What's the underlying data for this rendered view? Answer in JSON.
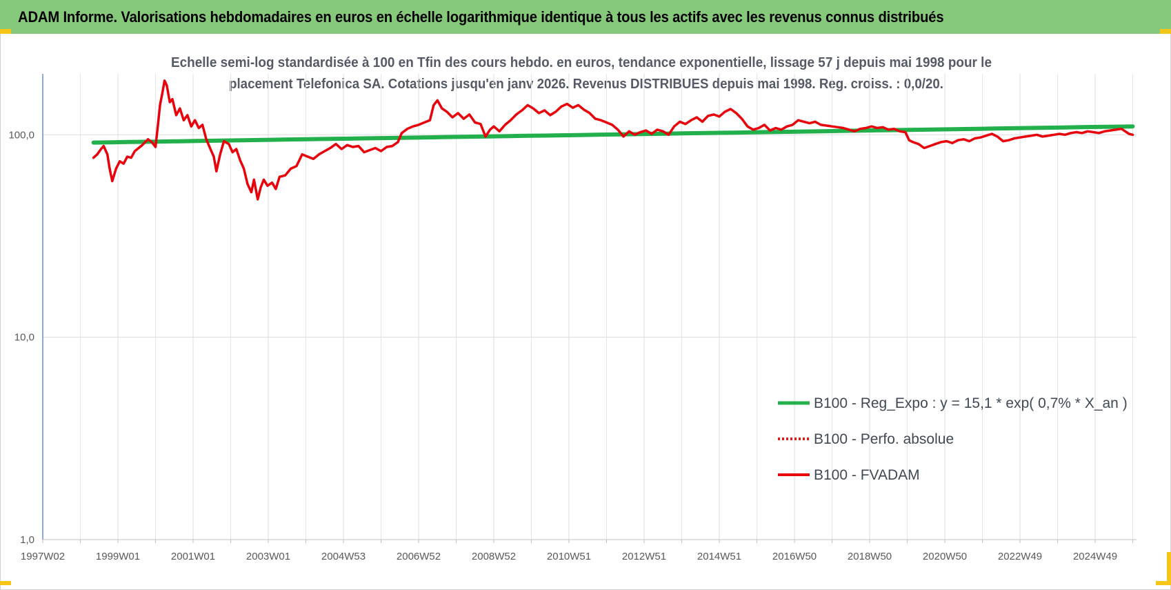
{
  "banner": {
    "title": "ADAM Informe. Valorisations hebdomadaires en euros en échelle logarithmique identique à tous les actifs avec les revenus connus distribués"
  },
  "colors": {
    "banner_bg": "#86c97a",
    "accent_corners": "#f5c518",
    "regression_line": "#21b04b",
    "perf_line": "#e31a1c",
    "fvadam_line": "#e8000b"
  },
  "chart_data": {
    "type": "line",
    "title_lines": [
      "Echelle semi-log standardisée à 100 en Tfin des cours hebdo. en euros, tendance exponentielle, lissage 57 j depuis mai 1998 pour le",
      "placement Telefonica SA.  Cotations jusqu'en janv 2026. Revenus DISTRIBUES depuis mai 1998.  Reg. croiss. : 0,0/20."
    ],
    "y_scale": "log",
    "ylim": [
      1,
      200
    ],
    "y_ticks": [
      {
        "value": 1,
        "label": "1,0"
      },
      {
        "value": 10,
        "label": "10,0"
      },
      {
        "value": 100,
        "label": "100,0"
      }
    ],
    "x_range_years": [
      1997.0,
      2026.1
    ],
    "x_ticks": [
      {
        "year": 1997.0,
        "label": "1997W02"
      },
      {
        "year": 1999.0,
        "label": "1999W01"
      },
      {
        "year": 2001.0,
        "label": "2001W01"
      },
      {
        "year": 2003.0,
        "label": "2003W01"
      },
      {
        "year": 2005.0,
        "label": "2004W53"
      },
      {
        "year": 2007.0,
        "label": "2006W52"
      },
      {
        "year": 2009.0,
        "label": "2008W52"
      },
      {
        "year": 2011.0,
        "label": "2010W51"
      },
      {
        "year": 2013.0,
        "label": "2012W51"
      },
      {
        "year": 2015.0,
        "label": "2014W51"
      },
      {
        "year": 2017.0,
        "label": "2016W50"
      },
      {
        "year": 2019.0,
        "label": "2018W50"
      },
      {
        "year": 2021.0,
        "label": "2020W50"
      },
      {
        "year": 2023.0,
        "label": "2022W49"
      },
      {
        "year": 2025.0,
        "label": "2024W49"
      }
    ],
    "grid": "vertical",
    "legend_position": "bottom-right",
    "series": [
      {
        "name": "B100 - Reg_Expo : y = 15,1 * exp( 0,7% *  X_an )",
        "style": "solid-green",
        "points": [
          [
            1998.35,
            91.5
          ],
          [
            2026.0,
            110.0
          ]
        ]
      },
      {
        "name": "B100 - Perfo. absolue",
        "style": "dotted-red",
        "points": []
      },
      {
        "name": "B100 - FVADAM",
        "style": "solid-red",
        "points": [
          [
            1998.35,
            77
          ],
          [
            1998.45,
            80
          ],
          [
            1998.55,
            85
          ],
          [
            1998.62,
            88
          ],
          [
            1998.72,
            80
          ],
          [
            1998.78,
            68
          ],
          [
            1998.85,
            59
          ],
          [
            1998.95,
            68
          ],
          [
            1999.05,
            74
          ],
          [
            1999.15,
            72
          ],
          [
            1999.25,
            78
          ],
          [
            1999.35,
            77
          ],
          [
            1999.45,
            83
          ],
          [
            1999.55,
            86
          ],
          [
            1999.65,
            89
          ],
          [
            1999.8,
            95
          ],
          [
            1999.9,
            92
          ],
          [
            2000.0,
            87
          ],
          [
            2000.06,
            110
          ],
          [
            2000.12,
            140
          ],
          [
            2000.18,
            160
          ],
          [
            2000.24,
            185
          ],
          [
            2000.3,
            175
          ],
          [
            2000.38,
            145
          ],
          [
            2000.45,
            150
          ],
          [
            2000.55,
            125
          ],
          [
            2000.65,
            135
          ],
          [
            2000.75,
            118
          ],
          [
            2000.85,
            125
          ],
          [
            2000.95,
            110
          ],
          [
            2001.05,
            118
          ],
          [
            2001.15,
            108
          ],
          [
            2001.25,
            112
          ],
          [
            2001.35,
            95
          ],
          [
            2001.45,
            86
          ],
          [
            2001.55,
            78
          ],
          [
            2001.62,
            66
          ],
          [
            2001.72,
            80
          ],
          [
            2001.82,
            93
          ],
          [
            2001.95,
            90
          ],
          [
            2002.05,
            82
          ],
          [
            2002.15,
            85
          ],
          [
            2002.25,
            75
          ],
          [
            2002.35,
            68
          ],
          [
            2002.45,
            57
          ],
          [
            2002.55,
            52
          ],
          [
            2002.62,
            60
          ],
          [
            2002.72,
            48
          ],
          [
            2002.8,
            55
          ],
          [
            2002.88,
            60
          ],
          [
            2002.98,
            56
          ],
          [
            2003.1,
            58
          ],
          [
            2003.2,
            54
          ],
          [
            2003.3,
            62
          ],
          [
            2003.45,
            63
          ],
          [
            2003.6,
            68
          ],
          [
            2003.75,
            70
          ],
          [
            2003.9,
            80
          ],
          [
            2004.05,
            78
          ],
          [
            2004.2,
            76
          ],
          [
            2004.35,
            80
          ],
          [
            2004.5,
            83
          ],
          [
            2004.65,
            86
          ],
          [
            2004.8,
            90
          ],
          [
            2004.95,
            85
          ],
          [
            2005.1,
            89
          ],
          [
            2005.25,
            87
          ],
          [
            2005.4,
            88
          ],
          [
            2005.55,
            82
          ],
          [
            2005.7,
            84
          ],
          [
            2005.85,
            86
          ],
          [
            2006.0,
            83
          ],
          [
            2006.15,
            87
          ],
          [
            2006.3,
            88
          ],
          [
            2006.45,
            92
          ],
          [
            2006.55,
            102
          ],
          [
            2006.7,
            107
          ],
          [
            2006.85,
            110
          ],
          [
            2007.0,
            112
          ],
          [
            2007.15,
            115
          ],
          [
            2007.3,
            118
          ],
          [
            2007.4,
            140
          ],
          [
            2007.5,
            148
          ],
          [
            2007.62,
            135
          ],
          [
            2007.75,
            130
          ],
          [
            2007.9,
            122
          ],
          [
            2008.05,
            128
          ],
          [
            2008.2,
            120
          ],
          [
            2008.35,
            126
          ],
          [
            2008.5,
            115
          ],
          [
            2008.65,
            113
          ],
          [
            2008.78,
            98
          ],
          [
            2008.9,
            106
          ],
          [
            2009.0,
            110
          ],
          [
            2009.15,
            104
          ],
          [
            2009.3,
            112
          ],
          [
            2009.45,
            118
          ],
          [
            2009.6,
            126
          ],
          [
            2009.75,
            132
          ],
          [
            2009.9,
            140
          ],
          [
            2010.05,
            135
          ],
          [
            2010.2,
            128
          ],
          [
            2010.35,
            132
          ],
          [
            2010.5,
            125
          ],
          [
            2010.65,
            130
          ],
          [
            2010.8,
            138
          ],
          [
            2010.95,
            142
          ],
          [
            2011.1,
            136
          ],
          [
            2011.25,
            140
          ],
          [
            2011.4,
            133
          ],
          [
            2011.55,
            128
          ],
          [
            2011.7,
            120
          ],
          [
            2011.85,
            118
          ],
          [
            2012.0,
            115
          ],
          [
            2012.15,
            112
          ],
          [
            2012.3,
            106
          ],
          [
            2012.45,
            98
          ],
          [
            2012.6,
            104
          ],
          [
            2012.75,
            100
          ],
          [
            2012.9,
            103
          ],
          [
            2013.05,
            105
          ],
          [
            2013.2,
            101
          ],
          [
            2013.35,
            106
          ],
          [
            2013.5,
            104
          ],
          [
            2013.65,
            100
          ],
          [
            2013.8,
            110
          ],
          [
            2013.95,
            116
          ],
          [
            2014.1,
            113
          ],
          [
            2014.25,
            118
          ],
          [
            2014.4,
            122
          ],
          [
            2014.55,
            116
          ],
          [
            2014.7,
            124
          ],
          [
            2014.85,
            126
          ],
          [
            2015.0,
            123
          ],
          [
            2015.15,
            130
          ],
          [
            2015.3,
            134
          ],
          [
            2015.45,
            128
          ],
          [
            2015.6,
            120
          ],
          [
            2015.75,
            110
          ],
          [
            2015.9,
            106
          ],
          [
            2016.05,
            108
          ],
          [
            2016.2,
            112
          ],
          [
            2016.35,
            105
          ],
          [
            2016.5,
            108
          ],
          [
            2016.65,
            106
          ],
          [
            2016.8,
            110
          ],
          [
            2016.95,
            112
          ],
          [
            2017.1,
            118
          ],
          [
            2017.25,
            116
          ],
          [
            2017.4,
            114
          ],
          [
            2017.55,
            116
          ],
          [
            2017.7,
            112
          ],
          [
            2017.85,
            111
          ],
          [
            2018.0,
            110
          ],
          [
            2018.15,
            109
          ],
          [
            2018.3,
            108
          ],
          [
            2018.45,
            106
          ],
          [
            2018.6,
            104
          ],
          [
            2018.75,
            107
          ],
          [
            2018.9,
            108
          ],
          [
            2019.05,
            110
          ],
          [
            2019.2,
            108
          ],
          [
            2019.35,
            109
          ],
          [
            2019.5,
            106
          ],
          [
            2019.65,
            107
          ],
          [
            2019.8,
            104
          ],
          [
            2019.95,
            103
          ],
          [
            2020.05,
            94
          ],
          [
            2020.15,
            92
          ],
          [
            2020.3,
            90
          ],
          [
            2020.45,
            86
          ],
          [
            2020.6,
            88
          ],
          [
            2020.75,
            90
          ],
          [
            2020.9,
            92
          ],
          [
            2021.05,
            93
          ],
          [
            2021.2,
            91
          ],
          [
            2021.35,
            94
          ],
          [
            2021.5,
            95
          ],
          [
            2021.65,
            93
          ],
          [
            2021.8,
            96
          ],
          [
            2021.95,
            97
          ],
          [
            2022.1,
            99
          ],
          [
            2022.25,
            101
          ],
          [
            2022.4,
            98
          ],
          [
            2022.55,
            93
          ],
          [
            2022.7,
            94
          ],
          [
            2022.85,
            96
          ],
          [
            2023.0,
            97
          ],
          [
            2023.15,
            98
          ],
          [
            2023.3,
            99
          ],
          [
            2023.45,
            100
          ],
          [
            2023.6,
            98
          ],
          [
            2023.75,
            99
          ],
          [
            2023.9,
            100
          ],
          [
            2024.05,
            101
          ],
          [
            2024.2,
            100
          ],
          [
            2024.35,
            102
          ],
          [
            2024.5,
            103
          ],
          [
            2024.65,
            102
          ],
          [
            2024.8,
            104
          ],
          [
            2024.95,
            103
          ],
          [
            2025.1,
            102
          ],
          [
            2025.25,
            104
          ],
          [
            2025.4,
            105
          ],
          [
            2025.55,
            106
          ],
          [
            2025.7,
            107
          ],
          [
            2025.8,
            104
          ],
          [
            2025.9,
            101
          ],
          [
            2026.0,
            100
          ]
        ]
      }
    ]
  }
}
